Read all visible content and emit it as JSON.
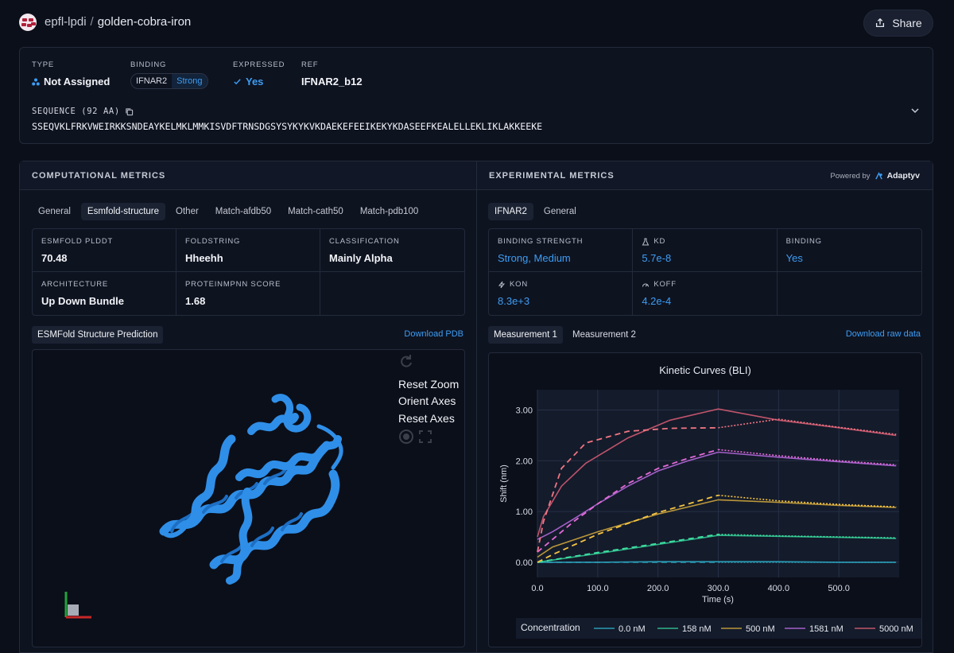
{
  "header": {
    "org": "epfl-lpdi",
    "separator": "/",
    "project": "golden-cobra-iron",
    "share_label": "Share"
  },
  "info": {
    "type_label": "TYPE",
    "type_value": "Not Assigned",
    "binding_label": "BINDING",
    "binding_target": "IFNAR2",
    "binding_strength": "Strong",
    "expressed_label": "EXPRESSED",
    "expressed_value": "Yes",
    "ref_label": "REF",
    "ref_value": "IFNAR2_b12",
    "sequence_label": "SEQUENCE (92 AA)",
    "sequence": "SSEQVKLFRKVWEIRKKSNDEAYKELMKLMMKISVDFTRNSDGSYSYKYKVKDAEKEFEEIKEKYKDASEEFKEALELLEKLIKLAKKEEKE"
  },
  "computational": {
    "title": "COMPUTATIONAL METRICS",
    "tabs": [
      "General",
      "Esmfold-structure",
      "Other",
      "Match-afdb50",
      "Match-cath50",
      "Match-pdb100"
    ],
    "metrics": [
      {
        "label": "ESMFOLD PLDDT",
        "value": "70.48"
      },
      {
        "label": "FOLDSTRING",
        "value": "Hheehh"
      },
      {
        "label": "CLASSIFICATION",
        "value": "Mainly Alpha"
      },
      {
        "label": "ARCHITECTURE",
        "value": "Up Down Bundle"
      },
      {
        "label": "PROTEINMPNN SCORE",
        "value": "1.68"
      }
    ],
    "structure_tab": "ESMFold Structure Prediction",
    "download_label": "Download PDB",
    "viewer_menu": [
      "Reset Zoom",
      "Orient Axes",
      "Reset Axes"
    ]
  },
  "experimental": {
    "title": "EXPERIMENTAL METRICS",
    "powered_by": "Powered by",
    "brand": "Adaptyv",
    "tabs": [
      "IFNAR2",
      "General"
    ],
    "metrics": [
      {
        "label": "BINDING STRENGTH",
        "value": "Strong, Medium",
        "icon": ""
      },
      {
        "label": "KD",
        "value": "5.7e-8",
        "icon": "flask-icon"
      },
      {
        "label": "BINDING",
        "value": "Yes",
        "icon": ""
      },
      {
        "label": "KON",
        "value": "8.3e+3",
        "icon": "bolt-icon"
      },
      {
        "label": "KOFF",
        "value": "4.2e-4",
        "icon": "gauge-icon"
      }
    ],
    "measurement_tabs": [
      "Measurement 1",
      "Measurement 2"
    ],
    "download_label": "Download raw data"
  },
  "chart_data": {
    "type": "line",
    "title": "Kinetic Curves (BLI)",
    "xlabel": "Time (s)",
    "ylabel": "Shift (nm)",
    "xlim": [
      0,
      600
    ],
    "ylim": [
      -0.3,
      3.4
    ],
    "xticks": [
      0,
      100,
      200,
      300,
      400,
      500
    ],
    "xtick_labels": [
      "0.0",
      "100.0",
      "200.0",
      "300.0",
      "400.0",
      "500.0"
    ],
    "yticks": [
      0,
      1,
      2,
      3
    ],
    "ytick_labels": [
      "0.00",
      "1.00",
      "2.00",
      "3.00"
    ],
    "legend_title": "Concentration",
    "legend_position": "bottom",
    "association_end": 300,
    "series": [
      {
        "name": "0.0 nM",
        "color": "#2a9bb5",
        "fit_color": "#2a9bb5",
        "x": [
          0,
          100,
          200,
          300,
          400,
          500,
          595
        ],
        "y": [
          0.0,
          0.0,
          0.01,
          0.01,
          0.01,
          0.0,
          0.0
        ],
        "fit_y": [
          0.0,
          0.0,
          0.0,
          0.0,
          0.0,
          0.0,
          0.0
        ]
      },
      {
        "name": "158 nM",
        "color": "#2fb58a",
        "fit_color": "#3fe0a0",
        "x": [
          0,
          100,
          200,
          300,
          400,
          500,
          595
        ],
        "y": [
          0.0,
          0.17,
          0.35,
          0.53,
          0.51,
          0.49,
          0.47
        ],
        "fit_y": [
          0.0,
          0.19,
          0.37,
          0.55,
          0.52,
          0.5,
          0.48
        ]
      },
      {
        "name": "500 nM",
        "color": "#b9963a",
        "fit_color": "#f5c441",
        "x": [
          0,
          25,
          100,
          200,
          300,
          400,
          500,
          595
        ],
        "y": [
          0.1,
          0.3,
          0.6,
          0.95,
          1.23,
          1.18,
          1.12,
          1.08
        ],
        "fit_y": [
          0.0,
          0.15,
          0.55,
          0.98,
          1.32,
          1.21,
          1.14,
          1.09
        ]
      },
      {
        "name": "1581 nM",
        "color": "#a45fc9",
        "fit_color": "#e56ad8",
        "x": [
          0,
          25,
          60,
          100,
          150,
          200,
          250,
          300,
          400,
          500,
          595
        ],
        "y": [
          0.45,
          0.6,
          0.85,
          1.15,
          1.5,
          1.8,
          2.0,
          2.17,
          2.07,
          1.98,
          1.9
        ],
        "fit_y": [
          0.2,
          0.45,
          0.8,
          1.15,
          1.55,
          1.85,
          2.05,
          2.22,
          2.1,
          2.0,
          1.92
        ]
      },
      {
        "name": "5000 nM",
        "color": "#c0546b",
        "fit_color": "#f27582",
        "x": [
          0,
          10,
          40,
          80,
          150,
          220,
          300,
          400,
          500,
          595
        ],
        "y": [
          0.5,
          0.9,
          1.5,
          1.95,
          2.45,
          2.8,
          3.02,
          2.8,
          2.65,
          2.5
        ],
        "fit_y": [
          0.2,
          0.8,
          1.85,
          2.35,
          2.58,
          2.64,
          2.65,
          2.82,
          2.66,
          2.52
        ]
      }
    ]
  }
}
